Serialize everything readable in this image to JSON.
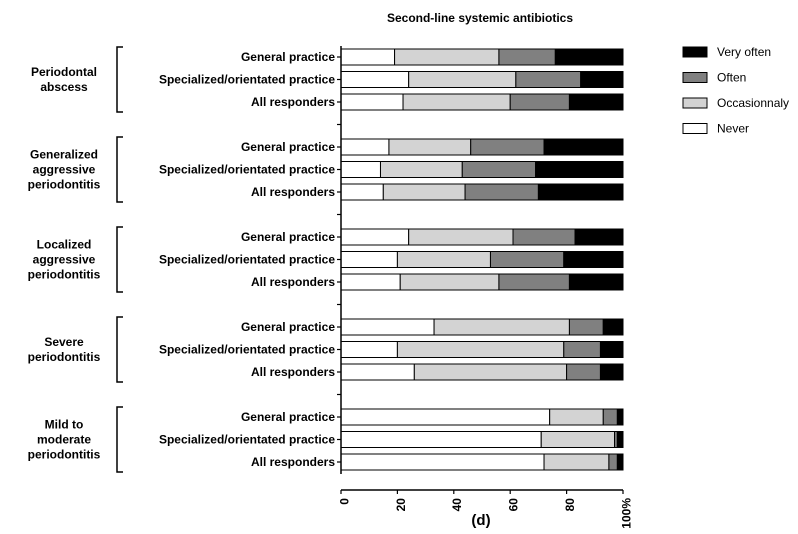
{
  "chart_data": {
    "type": "bar",
    "orientation": "horizontal",
    "stacked": true,
    "title": "Second-line systemic antibiotics",
    "panel_label": "(d)",
    "xlim": [
      0,
      100
    ],
    "x_ticks": [
      "0",
      "20",
      "40",
      "60",
      "80",
      "100%"
    ],
    "legend": [
      {
        "name": "Very often",
        "color": "#000000"
      },
      {
        "name": "Often",
        "color": "#808080"
      },
      {
        "name": "Occasionnaly",
        "color": "#d3d3d3"
      },
      {
        "name": "Never",
        "color": "#ffffff"
      }
    ],
    "groups": [
      {
        "label": [
          "Periodontal",
          "abscess"
        ],
        "rows": [
          {
            "label": "General practice",
            "values": {
              "Never": 19,
              "Occasionnaly": 37,
              "Often": 20,
              "Very often": 24
            }
          },
          {
            "label": "Specialized/orientated practice",
            "values": {
              "Never": 24,
              "Occasionnaly": 38,
              "Often": 23,
              "Very often": 15
            }
          },
          {
            "label": "All responders",
            "values": {
              "Never": 22,
              "Occasionnaly": 38,
              "Often": 21,
              "Very often": 19
            }
          }
        ]
      },
      {
        "label": [
          "Generalized",
          "aggressive",
          "periodontitis"
        ],
        "rows": [
          {
            "label": "General practice",
            "values": {
              "Never": 17,
              "Occasionnaly": 29,
              "Often": 26,
              "Very often": 28
            }
          },
          {
            "label": "Specialized/orientated practice",
            "values": {
              "Never": 14,
              "Occasionnaly": 29,
              "Often": 26,
              "Very often": 31
            }
          },
          {
            "label": "All responders",
            "values": {
              "Never": 15,
              "Occasionnaly": 29,
              "Often": 26,
              "Very often": 30
            }
          }
        ]
      },
      {
        "label": [
          "Localized",
          "aggressive",
          "periodontitis"
        ],
        "rows": [
          {
            "label": "General practice",
            "values": {
              "Never": 24,
              "Occasionnaly": 37,
              "Often": 22,
              "Very often": 17
            }
          },
          {
            "label": "Specialized/orientated practice",
            "values": {
              "Never": 20,
              "Occasionnaly": 33,
              "Often": 26,
              "Very often": 21
            }
          },
          {
            "label": "All responders",
            "values": {
              "Never": 21,
              "Occasionnaly": 35,
              "Often": 25,
              "Very often": 19
            }
          }
        ]
      },
      {
        "label": [
          "Severe",
          "periodontitis"
        ],
        "rows": [
          {
            "label": "General practice",
            "values": {
              "Never": 33,
              "Occasionnaly": 48,
              "Often": 12,
              "Very often": 7
            }
          },
          {
            "label": "Specialized/orientated practice",
            "values": {
              "Never": 20,
              "Occasionnaly": 59,
              "Often": 13,
              "Very often": 8
            }
          },
          {
            "label": "All responders",
            "values": {
              "Never": 26,
              "Occasionnaly": 54,
              "Often": 12,
              "Very often": 8
            }
          }
        ]
      },
      {
        "label": [
          "Mild to",
          "moderate",
          "periodontitis"
        ],
        "rows": [
          {
            "label": "General practice",
            "values": {
              "Never": 74,
              "Occasionnaly": 19,
              "Often": 5,
              "Very often": 2
            }
          },
          {
            "label": "Specialized/orientated practice",
            "values": {
              "Never": 71,
              "Occasionnaly": 26,
              "Often": 1,
              "Very often": 2
            }
          },
          {
            "label": "All responders",
            "values": {
              "Never": 72,
              "Occasionnaly": 23,
              "Often": 3,
              "Very often": 2
            }
          }
        ]
      }
    ]
  }
}
